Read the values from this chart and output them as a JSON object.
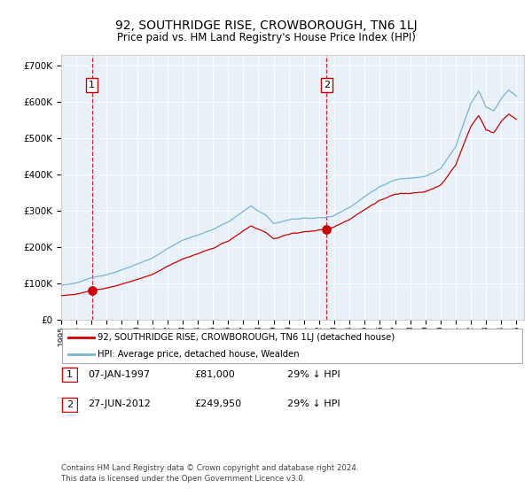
{
  "title": "92, SOUTHRIDGE RISE, CROWBOROUGH, TN6 1LJ",
  "subtitle": "Price paid vs. HM Land Registry's House Price Index (HPI)",
  "sale1_date_x": 1997.03,
  "sale1_price": 81000,
  "sale1_label": "07-JAN-1997",
  "sale1_amount": "£81,000",
  "sale1_pct": "29% ↓ HPI",
  "sale2_date_x": 2012.49,
  "sale2_price": 249950,
  "sale2_label": "27-JUN-2012",
  "sale2_amount": "£249,950",
  "sale2_pct": "29% ↓ HPI",
  "ylim": [
    0,
    730000
  ],
  "xlim": [
    1995.0,
    2025.5
  ],
  "legend_line1": "92, SOUTHRIDGE RISE, CROWBOROUGH, TN6 1LJ (detached house)",
  "legend_line2": "HPI: Average price, detached house, Wealden",
  "footnote1": "Contains HM Land Registry data © Crown copyright and database right 2024.",
  "footnote2": "This data is licensed under the Open Government Licence v3.0.",
  "plot_bg": "#e8f1f8",
  "hpi_color": "#7ab3d4",
  "prop_color": "#cc0000",
  "grid_color": "#ffffff",
  "title_fontsize": 10,
  "subtitle_fontsize": 8.5
}
